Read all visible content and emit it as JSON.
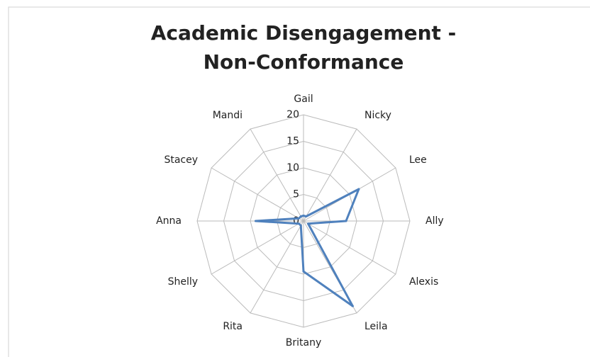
{
  "chart_data": {
    "type": "radar",
    "title": [
      "Academic Disengagement -",
      "Non-Conformance"
    ],
    "categories": [
      "Gail",
      "Nicky",
      "Lee",
      "Ally",
      "Alexis",
      "Leila",
      "Britany",
      "Rita",
      "Shelly",
      "Anna",
      "Stacey",
      "Mandi"
    ],
    "series": [
      {
        "name": "Non-Conformance",
        "color": "#4f81bd",
        "values": [
          1,
          1,
          12,
          8,
          1,
          18.5,
          9.5,
          1,
          1,
          9,
          1,
          1
        ]
      }
    ],
    "ylim": [
      0,
      20
    ],
    "yticks": [
      0,
      5,
      10,
      15,
      20
    ],
    "grid": true
  }
}
